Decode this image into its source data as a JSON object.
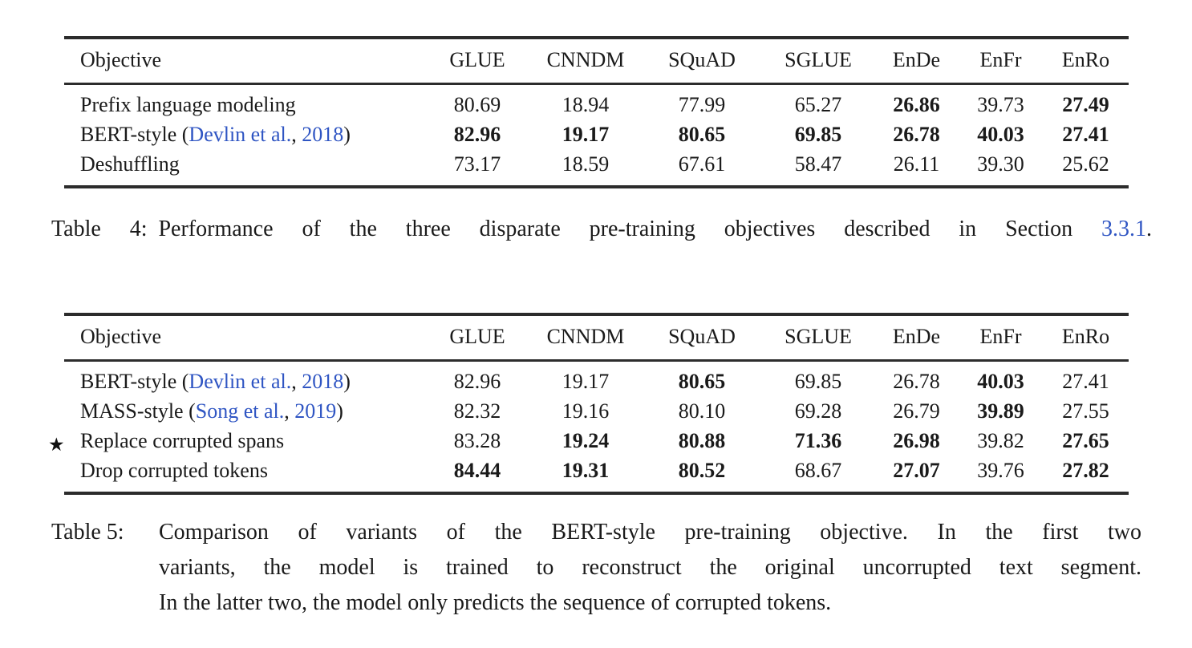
{
  "page": {
    "background": "#ffffff",
    "text_color": "#1a1a1a",
    "link_color": "#2f55c3",
    "rule_color": "#2c2c2c"
  },
  "icons": {
    "star": "★"
  },
  "tables": [
    {
      "title": "Table 4",
      "columns": [
        "Objective",
        "GLUE",
        "CNNDM",
        "SQuAD",
        "SGLUE",
        "EnDe",
        "EnFr",
        "EnRo"
      ],
      "rows": [
        {
          "star": false,
          "objective": [
            {
              "text": "Prefix language modeling",
              "link": false
            }
          ],
          "values": [
            {
              "v": "80.69",
              "bold": false
            },
            {
              "v": "18.94",
              "bold": false
            },
            {
              "v": "77.99",
              "bold": false
            },
            {
              "v": "65.27",
              "bold": false
            },
            {
              "v": "26.86",
              "bold": true
            },
            {
              "v": "39.73",
              "bold": false
            },
            {
              "v": "27.49",
              "bold": true
            }
          ]
        },
        {
          "star": false,
          "objective": [
            {
              "text": "BERT-style (",
              "link": false
            },
            {
              "text": "Devlin et al.",
              "link": true
            },
            {
              "text": ", ",
              "link": false
            },
            {
              "text": "2018",
              "link": true
            },
            {
              "text": ")",
              "link": false
            }
          ],
          "values": [
            {
              "v": "82.96",
              "bold": true
            },
            {
              "v": "19.17",
              "bold": true
            },
            {
              "v": "80.65",
              "bold": true
            },
            {
              "v": "69.85",
              "bold": true
            },
            {
              "v": "26.78",
              "bold": true
            },
            {
              "v": "40.03",
              "bold": true
            },
            {
              "v": "27.41",
              "bold": true
            }
          ]
        },
        {
          "star": false,
          "objective": [
            {
              "text": "Deshuffling",
              "link": false
            }
          ],
          "values": [
            {
              "v": "73.17",
              "bold": false
            },
            {
              "v": "18.59",
              "bold": false
            },
            {
              "v": "67.61",
              "bold": false
            },
            {
              "v": "58.47",
              "bold": false
            },
            {
              "v": "26.11",
              "bold": false
            },
            {
              "v": "39.30",
              "bold": false
            },
            {
              "v": "25.62",
              "bold": false
            }
          ]
        }
      ],
      "caption": {
        "label": "Table 4:",
        "segments": [
          {
            "text": "Performance of the three disparate pre-training objectives described in Section ",
            "link": false
          },
          {
            "text": "3.3.1",
            "link": true
          },
          {
            "text": ".",
            "link": false
          }
        ]
      }
    },
    {
      "title": "Table 5",
      "columns": [
        "Objective",
        "GLUE",
        "CNNDM",
        "SQuAD",
        "SGLUE",
        "EnDe",
        "EnFr",
        "EnRo"
      ],
      "rows": [
        {
          "star": false,
          "objective": [
            {
              "text": "BERT-style (",
              "link": false
            },
            {
              "text": "Devlin et al.",
              "link": true
            },
            {
              "text": ", ",
              "link": false
            },
            {
              "text": "2018",
              "link": true
            },
            {
              "text": ")",
              "link": false
            }
          ],
          "values": [
            {
              "v": "82.96",
              "bold": false
            },
            {
              "v": "19.17",
              "bold": false
            },
            {
              "v": "80.65",
              "bold": true
            },
            {
              "v": "69.85",
              "bold": false
            },
            {
              "v": "26.78",
              "bold": false
            },
            {
              "v": "40.03",
              "bold": true
            },
            {
              "v": "27.41",
              "bold": false
            }
          ]
        },
        {
          "star": false,
          "objective": [
            {
              "text": "MASS-style (",
              "link": false
            },
            {
              "text": "Song et al.",
              "link": true
            },
            {
              "text": ", ",
              "link": false
            },
            {
              "text": "2019",
              "link": true
            },
            {
              "text": ")",
              "link": false
            }
          ],
          "values": [
            {
              "v": "82.32",
              "bold": false
            },
            {
              "v": "19.16",
              "bold": false
            },
            {
              "v": "80.10",
              "bold": false
            },
            {
              "v": "69.28",
              "bold": false
            },
            {
              "v": "26.79",
              "bold": false
            },
            {
              "v": "39.89",
              "bold": true
            },
            {
              "v": "27.55",
              "bold": false
            }
          ]
        },
        {
          "star": true,
          "objective": [
            {
              "text": "Replace corrupted spans",
              "link": false
            }
          ],
          "values": [
            {
              "v": "83.28",
              "bold": false
            },
            {
              "v": "19.24",
              "bold": true
            },
            {
              "v": "80.88",
              "bold": true
            },
            {
              "v": "71.36",
              "bold": true
            },
            {
              "v": "26.98",
              "bold": true
            },
            {
              "v": "39.82",
              "bold": false
            },
            {
              "v": "27.65",
              "bold": true
            }
          ]
        },
        {
          "star": false,
          "objective": [
            {
              "text": "Drop corrupted tokens",
              "link": false
            }
          ],
          "values": [
            {
              "v": "84.44",
              "bold": true
            },
            {
              "v": "19.31",
              "bold": true
            },
            {
              "v": "80.52",
              "bold": true
            },
            {
              "v": "68.67",
              "bold": false
            },
            {
              "v": "27.07",
              "bold": true
            },
            {
              "v": "39.76",
              "bold": false
            },
            {
              "v": "27.82",
              "bold": true
            }
          ]
        }
      ],
      "caption": {
        "label": "Table 5:",
        "lines": [
          "Comparison of variants of the BERT-style pre-training objective. In the first two",
          "variants, the model is trained to reconstruct the original uncorrupted text segment.",
          "In the latter two, the model only predicts the sequence of corrupted tokens."
        ]
      }
    }
  ]
}
